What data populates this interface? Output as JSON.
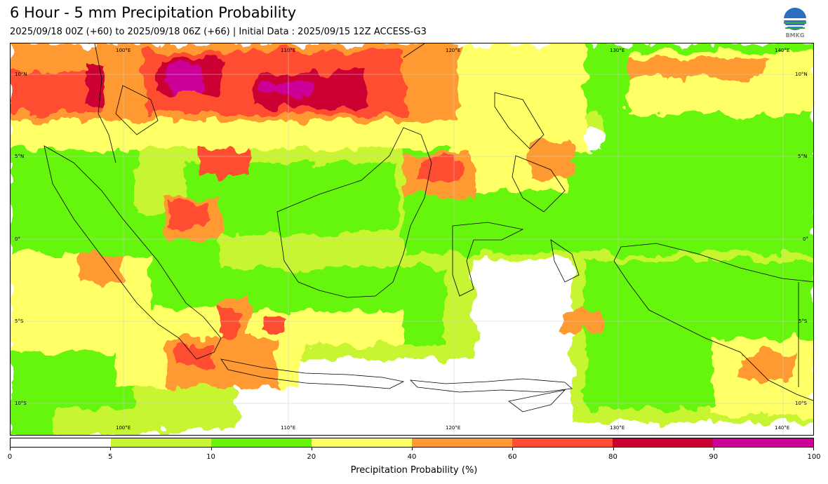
{
  "header": {
    "title": "6 Hour - 5 mm Precipitation Probability",
    "subtitle": "2025/09/18 00Z (+60) to 2025/09/18 06Z (+66) | Initial Data : 2025/09/15 12Z ACCESS-G3",
    "logo_text": "BMKG"
  },
  "map": {
    "lon_ticks": [
      "100°E",
      "110°E",
      "120°E",
      "130°E",
      "140°E"
    ],
    "lat_ticks": [
      "10°N",
      "5°N",
      "0°",
      "5°S",
      "10°S"
    ]
  },
  "colorbar": {
    "ticks": [
      "0",
      "5",
      "10",
      "20",
      "40",
      "60",
      "80",
      "90",
      "100"
    ],
    "colors": [
      "#ffffff",
      "#c8f531",
      "#66f50a",
      "#ffff66",
      "#ff9933",
      "#ff4d33",
      "#cc0033",
      "#cc0099"
    ],
    "label": "Precipitation Probability (%)"
  }
}
